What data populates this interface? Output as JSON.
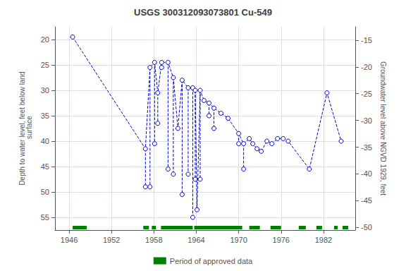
{
  "chart_data": {
    "type": "scatter",
    "title": "USGS 300312093073801 Cu-549",
    "ylabel": "Depth to water level, feet below land\n surface",
    "y2label": "Groundwater level above NGVD 1929, feet",
    "xlim": [
      1944.0,
      1986.5
    ],
    "xticks": [
      1946,
      1952,
      1958,
      1964,
      1970,
      1976,
      1982
    ],
    "ylim": [
      57.5,
      17.5
    ],
    "yticks": [
      20,
      25,
      30,
      35,
      40,
      45,
      50,
      55
    ],
    "y2lim": [
      -50.5,
      -12.5
    ],
    "y2ticks": [
      -15,
      -20,
      -25,
      -30,
      -35,
      -40,
      -45,
      -50
    ],
    "grid": true,
    "legend": "bottom",
    "series": [
      {
        "type": "line",
        "line_style": "dashed",
        "color": "#0000CC",
        "x": [
          1946.5,
          1956.8,
          1957.45,
          1958.1,
          1958.55,
          1959.1,
          1960.0,
          1960.75,
          1961.4,
          1962.0,
          1962.85,
          1963.5,
          1963.85,
          1964.1,
          1964.55,
          1965.1,
          1965.8,
          1966.5,
          1967.5,
          1968.5,
          1970.0,
          1970.7,
          1971.5,
          1972.0,
          1972.6,
          1973.2,
          1974.0,
          1974.7,
          1975.5,
          1976.3,
          1977.0,
          1980.0,
          1982.5,
          1984.5
        ],
        "values": [
          19.5,
          41.5,
          25.5,
          24.5,
          30.5,
          24.5,
          24.5,
          27.5,
          37.5,
          28.0,
          29.5,
          29.5,
          30.0,
          53.5,
          30.0,
          32.0,
          32.5,
          33.5,
          34.5,
          35.5,
          38.5,
          40.5,
          39.5,
          40.5,
          41.5,
          42.0,
          40.0,
          40.5,
          39.5,
          39.5,
          40.0,
          45.5,
          30.5,
          40.0
        ]
      },
      {
        "type": "scatter",
        "marker": "circle",
        "line_style": "dashed",
        "color": "#0000CC",
        "x": [
          1946.5,
          1956.8,
          1956.8,
          1957.45,
          1957.45,
          1958.1,
          1958.1,
          1958.55,
          1958.55,
          1959.1,
          1959.1,
          1960.0,
          1960.0,
          1960.75,
          1960.75,
          1961.4,
          1962.0,
          1962.0,
          1962.85,
          1962.85,
          1963.5,
          1963.5,
          1963.85,
          1963.85,
          1964.1,
          1964.55,
          1964.55,
          1965.1,
          1965.8,
          1965.8,
          1966.5,
          1966.5,
          1967.5,
          1968.5,
          1970.0,
          1970.0,
          1970.7,
          1970.7,
          1971.5,
          1972.0,
          1972.6,
          1973.2,
          1974.0,
          1974.7,
          1975.5,
          1976.3,
          1977.0,
          1980.0,
          1982.5,
          1984.5
        ],
        "values": [
          19.5,
          41.5,
          49.0,
          25.5,
          49.0,
          24.5,
          40.5,
          30.5,
          36.5,
          24.5,
          25.5,
          24.5,
          45.5,
          27.5,
          46.5,
          37.5,
          28.0,
          50.5,
          29.5,
          46.5,
          55.0,
          29.5,
          30.0,
          47.5,
          53.5,
          30.0,
          47.5,
          32.0,
          32.5,
          35.0,
          33.5,
          37.5,
          34.5,
          35.5,
          38.5,
          40.5,
          45.5,
          40.5,
          39.5,
          40.5,
          41.5,
          42.0,
          40.0,
          40.5,
          39.5,
          39.5,
          40.0,
          45.5,
          30.5,
          40.0
        ]
      },
      {
        "type": "period",
        "name": "Period of approved data",
        "color": "#008000",
        "start": [
          1946.5,
          1956.5,
          1957.7,
          1959.0,
          1963.7,
          1971.5,
          1974.5,
          1978.5,
          1981.0,
          1983.5,
          1984.7
        ],
        "end": [
          1948.5,
          1957.3,
          1958.3,
          1963.5,
          1970.5,
          1973.0,
          1976.0,
          1979.5,
          1981.8,
          1984.0,
          1985.5
        ]
      }
    ]
  }
}
